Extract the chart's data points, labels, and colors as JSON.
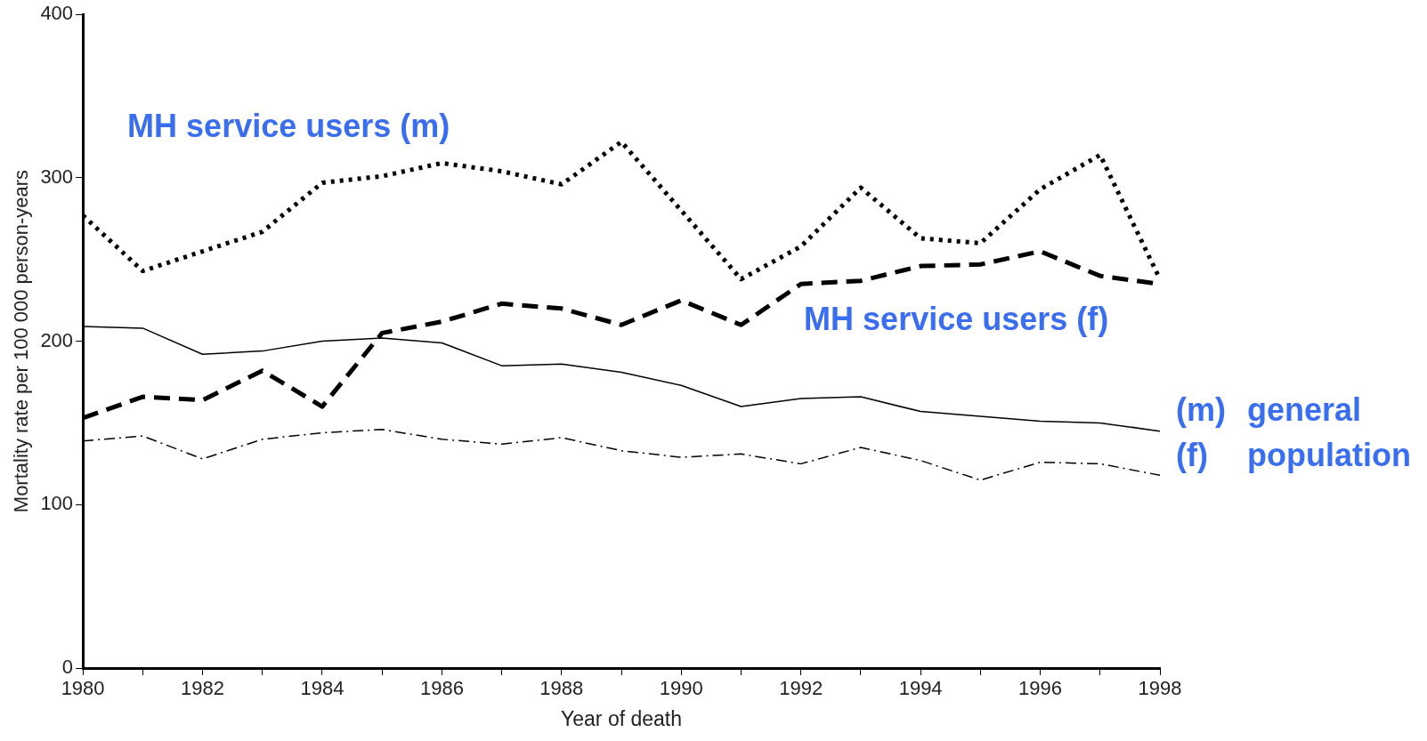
{
  "chart_data": {
    "type": "line",
    "xlabel": "Year of death",
    "ylabel": "Mortality rate per 100 000 person-years",
    "x": [
      1980,
      1981,
      1982,
      1983,
      1984,
      1985,
      1986,
      1987,
      1988,
      1989,
      1990,
      1991,
      1992,
      1993,
      1994,
      1995,
      1996,
      1997,
      1998
    ],
    "series": [
      {
        "name": "MH service users (m)",
        "color": "#000000",
        "line_style": "dotted",
        "values": [
          277,
          243,
          255,
          267,
          297,
          301,
          309,
          304,
          296,
          322,
          280,
          238,
          258,
          294,
          263,
          260,
          293,
          314,
          238
        ]
      },
      {
        "name": "MH service users (f)",
        "color": "#000000",
        "line_style": "dashed",
        "values": [
          153,
          166,
          164,
          182,
          160,
          205,
          212,
          223,
          220,
          210,
          225,
          210,
          235,
          237,
          246,
          247,
          255,
          240,
          235
        ]
      },
      {
        "name": "(m)",
        "color": "#000000",
        "line_style": "solid",
        "values": [
          209,
          208,
          192,
          194,
          200,
          202,
          199,
          185,
          186,
          181,
          173,
          160,
          165,
          166,
          157,
          154,
          151,
          150,
          145
        ]
      },
      {
        "name": "(f)",
        "color": "#000000",
        "line_style": "dashed",
        "values": [
          139,
          142,
          128,
          140,
          144,
          146,
          140,
          137,
          141,
          133,
          129,
          131,
          125,
          135,
          127,
          115,
          126,
          125,
          118
        ]
      }
    ],
    "annotations": [
      "general population"
    ],
    "xlim": [
      1980,
      1998
    ],
    "xticks": [
      1980,
      {
        "value": 1981,
        "label": null
      },
      1982,
      {
        "value": 1983,
        "label": null
      },
      1984,
      {
        "value": 1985,
        "label": null
      },
      1986,
      {
        "value": 1987,
        "label": null
      },
      1988,
      {
        "value": 1989,
        "label": null
      },
      1990,
      {
        "value": 1991,
        "label": null
      },
      1992,
      {
        "value": 1993,
        "label": null
      },
      1994,
      {
        "value": 1995,
        "label": null
      },
      1996,
      {
        "value": 1997,
        "label": null
      },
      1998
    ],
    "ylim": [
      0,
      400
    ],
    "yticks": [
      0,
      100,
      200,
      300,
      400
    ],
    "grid": false,
    "legend": false,
    "marker": "none"
  }
}
